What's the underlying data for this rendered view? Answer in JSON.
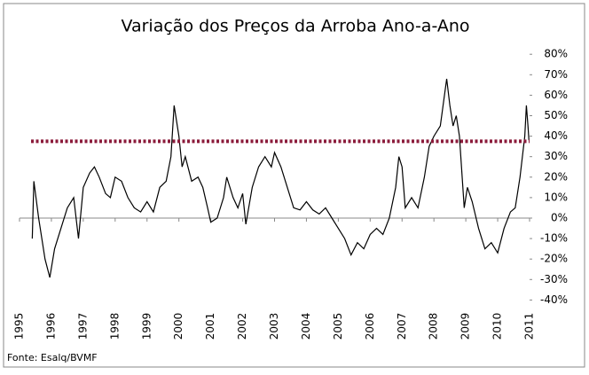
{
  "chart_data": {
    "type": "line",
    "title": "Variação dos Preços da Arroba Ano-a-Ano",
    "source": "Fonte: Esalq/BVMF",
    "x": [
      1995.4,
      1995.45,
      1995.6,
      1995.8,
      1995.95,
      1996.1,
      1996.3,
      1996.5,
      1996.7,
      1996.85,
      1997.0,
      1997.2,
      1997.35,
      1997.5,
      1997.7,
      1997.85,
      1998.0,
      1998.2,
      1998.4,
      1998.6,
      1998.8,
      1999.0,
      1999.2,
      1999.4,
      1999.6,
      1999.75,
      1999.85,
      2000.0,
      2000.1,
      2000.2,
      2000.4,
      2000.6,
      2000.75,
      2000.9,
      2001.0,
      2001.2,
      2001.4,
      2001.5,
      2001.7,
      2001.85,
      2002.0,
      2002.1,
      2002.3,
      2002.5,
      2002.7,
      2002.9,
      2003.0,
      2003.2,
      2003.4,
      2003.6,
      2003.8,
      2004.0,
      2004.2,
      2004.4,
      2004.6,
      2004.8,
      2005.0,
      2005.2,
      2005.4,
      2005.6,
      2005.8,
      2006.0,
      2006.2,
      2006.4,
      2006.6,
      2006.8,
      2006.9,
      2007.0,
      2007.1,
      2007.3,
      2007.5,
      2007.7,
      2007.85,
      2008.0,
      2008.2,
      2008.4,
      2008.5,
      2008.6,
      2008.7,
      2008.8,
      2008.95,
      2009.05,
      2009.2,
      2009.4,
      2009.6,
      2009.8,
      2010.0,
      2010.2,
      2010.4,
      2010.55,
      2010.7,
      2010.85,
      2010.9,
      2010.95,
      2010.98
    ],
    "series": [
      {
        "color": "#000000",
        "values": [
          -10,
          18,
          0,
          -20,
          -29,
          -15,
          -5,
          5,
          10,
          -10,
          15,
          22,
          25,
          20,
          12,
          10,
          20,
          18,
          10,
          5,
          3,
          8,
          3,
          15,
          18,
          30,
          55,
          40,
          25,
          30,
          18,
          20,
          15,
          5,
          -2,
          0,
          10,
          20,
          10,
          5,
          12,
          -3,
          15,
          25,
          30,
          25,
          32,
          25,
          15,
          5,
          4,
          8,
          4,
          2,
          5,
          0,
          -5,
          -10,
          -18,
          -12,
          -15,
          -8,
          -5,
          -8,
          0,
          15,
          30,
          25,
          5,
          10,
          5,
          20,
          35,
          40,
          45,
          68,
          55,
          45,
          50,
          40,
          5,
          15,
          8,
          -5,
          -15,
          -12,
          -17,
          -5,
          3,
          5,
          20,
          40,
          55,
          45,
          38
        ]
      }
    ],
    "reference_line": {
      "value": 37.5,
      "color": "#8b1a3a"
    },
    "xlim": [
      1995,
      2011
    ],
    "xticks": [
      1995,
      1996,
      1997,
      1998,
      1999,
      2000,
      2001,
      2002,
      2003,
      2004,
      2005,
      2006,
      2007,
      2008,
      2009,
      2010,
      2011
    ],
    "ylim": [
      -40,
      80
    ],
    "yticks": [
      {
        "value": -40,
        "label": "-40%"
      },
      {
        "value": -30,
        "label": "-30%"
      },
      {
        "value": -20,
        "label": "-20%"
      },
      {
        "value": -10,
        "label": "-10%"
      },
      {
        "value": 0,
        "label": "0%"
      },
      {
        "value": 10,
        "label": "10%"
      },
      {
        "value": 20,
        "label": "20%"
      },
      {
        "value": 30,
        "label": "30%"
      },
      {
        "value": 40,
        "label": "40%"
      },
      {
        "value": 50,
        "label": "50%"
      },
      {
        "value": 60,
        "label": "60%"
      },
      {
        "value": 70,
        "label": "70%"
      },
      {
        "value": 80,
        "label": "80%"
      }
    ]
  }
}
